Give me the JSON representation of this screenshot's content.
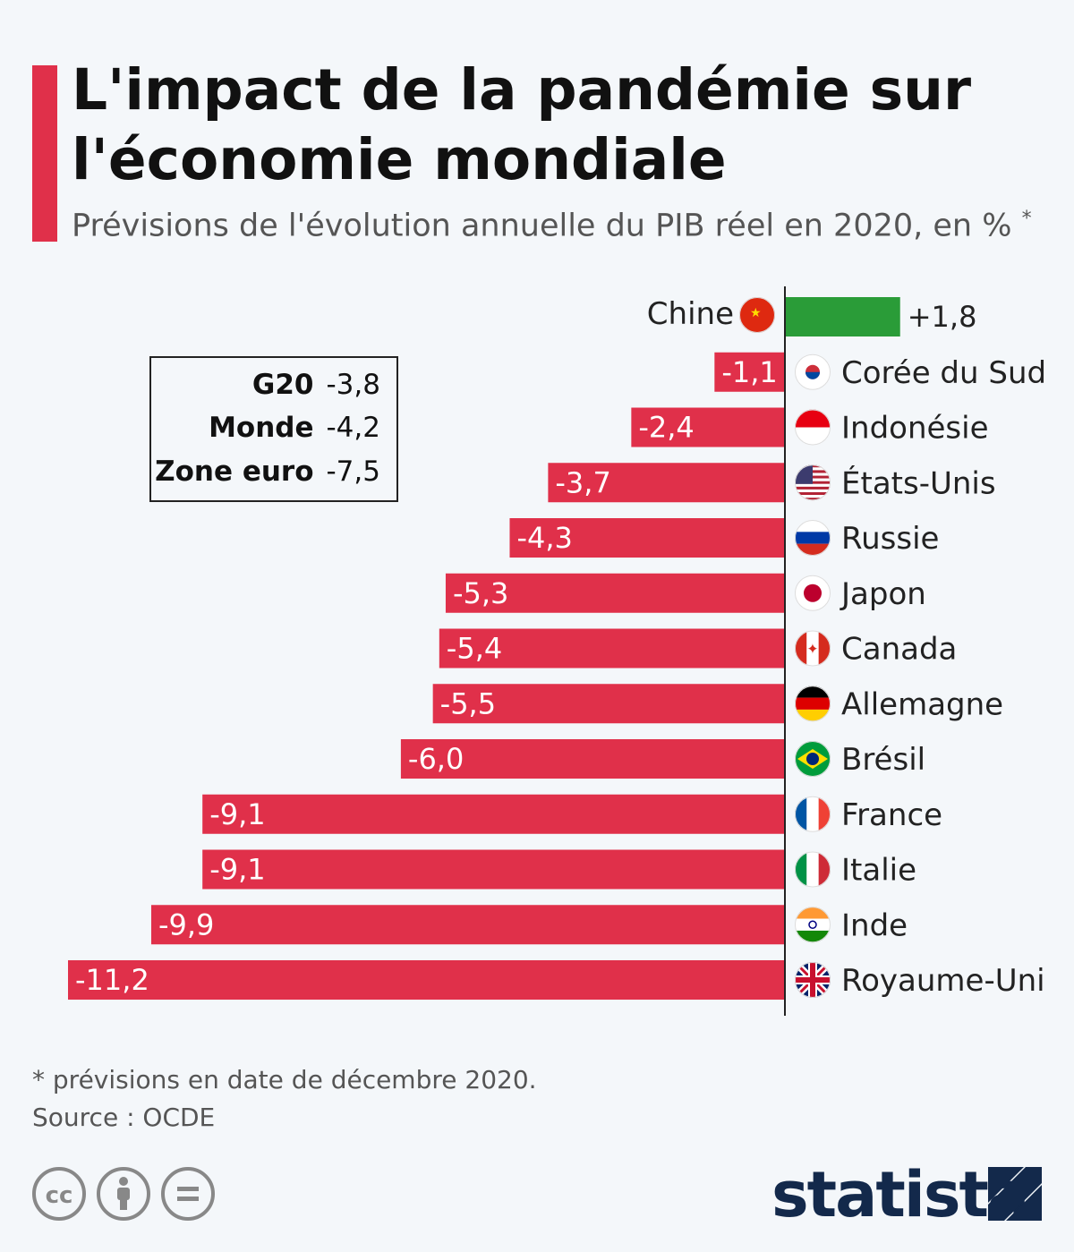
{
  "header": {
    "title_line1": "L'impact de la pandémie sur",
    "title_line2": "l'économie mondiale",
    "subtitle": "Prévisions de l'évolution annuelle du PIB réel en 2020, en %",
    "subtitle_mark": "*"
  },
  "legend": {
    "items": [
      {
        "name": "G20",
        "value": "-3,8"
      },
      {
        "name": "Monde",
        "value": "-4,2"
      },
      {
        "name": "Zone euro",
        "value": "-7,5"
      }
    ]
  },
  "chart_data": {
    "type": "bar",
    "orientation": "horizontal",
    "categories": [
      "Chine",
      "Corée du Sud",
      "Indonésie",
      "États-Unis",
      "Russie",
      "Japon",
      "Canada",
      "Allemagne",
      "Brésil",
      "France",
      "Italie",
      "Inde",
      "Royaume-Uni"
    ],
    "values": [
      1.8,
      -1.1,
      -2.4,
      -3.7,
      -4.3,
      -5.3,
      -5.4,
      -5.5,
      -6.0,
      -9.1,
      -9.1,
      -9.9,
      -11.2
    ],
    "labels": [
      "+1,8",
      "-1,1",
      "-2,4",
      "-3,7",
      "-4,3",
      "-5,3",
      "-5,4",
      "-5,5",
      "-6,0",
      "-9,1",
      "-9,1",
      "-9,9",
      "-11,2"
    ],
    "flags": [
      "china-flag-icon",
      "south-korea-flag-icon",
      "indonesia-flag-icon",
      "usa-flag-icon",
      "russia-flag-icon",
      "japan-flag-icon",
      "canada-flag-icon",
      "germany-flag-icon",
      "brazil-flag-icon",
      "france-flag-icon",
      "italy-flag-icon",
      "india-flag-icon",
      "uk-flag-icon"
    ],
    "colors": {
      "positive": "#2a9c38",
      "negative": "#e0304a"
    },
    "xlim": [
      -11.2,
      1.8
    ],
    "grid": false
  },
  "footer": {
    "note": "* prévisions en date de décembre 2020.",
    "source": "Source : OCDE",
    "logo": "statista",
    "license_icons": [
      "cc-icon",
      "by-icon",
      "nd-icon"
    ]
  }
}
